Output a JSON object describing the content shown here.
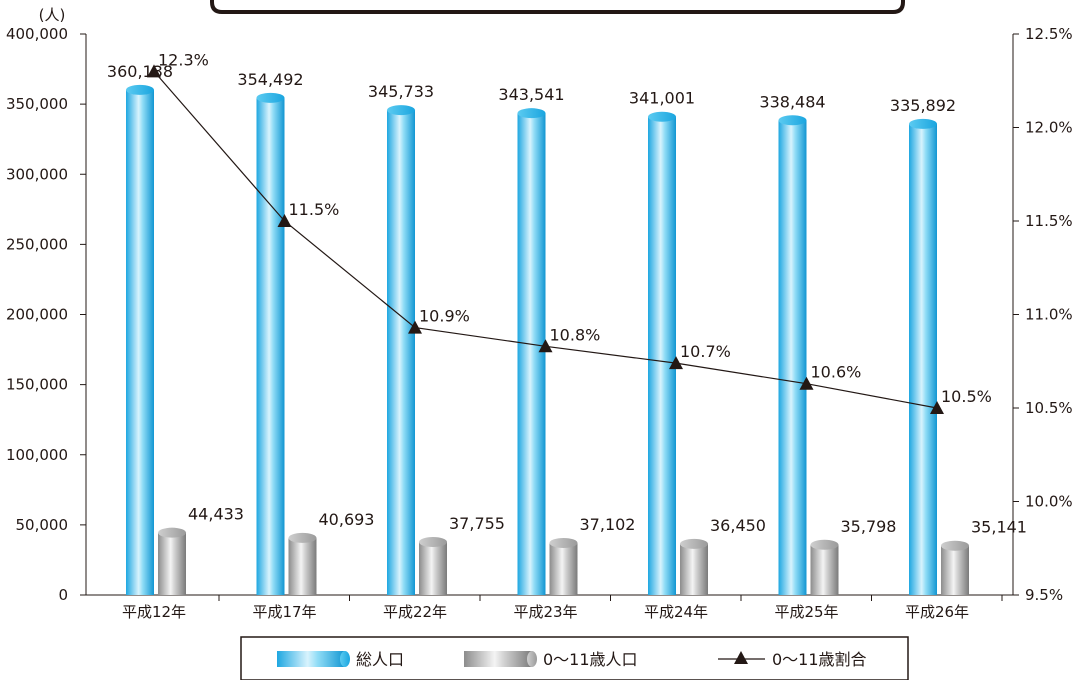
{
  "chart_data": {
    "type": "bar",
    "title": "",
    "xlabel": "",
    "ylabel": "(人)",
    "categories": [
      "平成12年",
      "平成17年",
      "平成22年",
      "平成23年",
      "平成24年",
      "平成25年",
      "平成26年"
    ],
    "ylim": [
      0,
      400000
    ],
    "y_ticks": [
      "0",
      "50,000",
      "100,000",
      "150,000",
      "200,000",
      "250,000",
      "300,000",
      "350,000",
      "400,000"
    ],
    "y2lim": [
      9.5,
      12.5
    ],
    "y2_ticks": [
      "9.5%",
      "10.0%",
      "10.5%",
      "11.0%",
      "11.5%",
      "12.0%",
      "12.5%"
    ],
    "grid": false,
    "legend_position": "bottom",
    "series": [
      {
        "name": "総人口",
        "type": "bar",
        "axis": "left",
        "color": "#29b6e8",
        "values": [
          360138,
          354492,
          345733,
          343541,
          341001,
          338484,
          335892
        ],
        "labels": [
          "360,138",
          "354,492",
          "345,733",
          "343,541",
          "341,001",
          "338,484",
          "335,892"
        ]
      },
      {
        "name": "0～11歳人口",
        "type": "bar",
        "axis": "left",
        "color": "#9a9a9a",
        "values": [
          44433,
          40693,
          37755,
          37102,
          36450,
          35798,
          35141
        ],
        "labels": [
          "44,433",
          "40,693",
          "37,755",
          "37,102",
          "36,450",
          "35,798",
          "35,141"
        ]
      },
      {
        "name": "0～11歳割合",
        "type": "line",
        "axis": "right",
        "color": "#231815",
        "values": [
          12.3,
          11.5,
          10.93,
          10.83,
          10.74,
          10.63,
          10.5
        ],
        "labels": [
          "12.3%",
          "11.5%",
          "10.9%",
          "10.8%",
          "10.7%",
          "10.6%",
          "10.5%"
        ]
      }
    ]
  }
}
